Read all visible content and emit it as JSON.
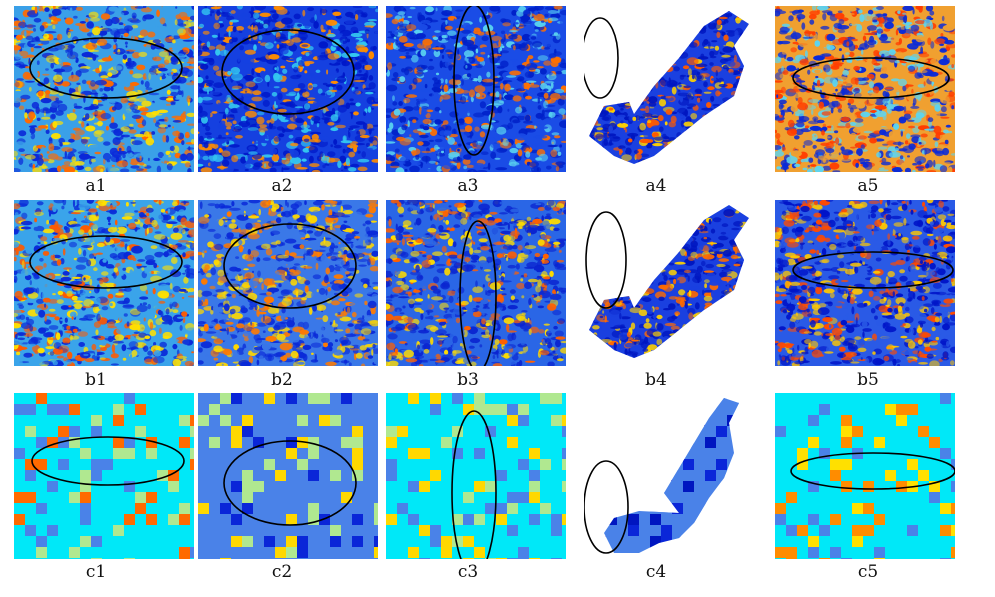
{
  "figure": {
    "rows": [
      {
        "id": "a",
        "panels": [
          {
            "label": "a1",
            "colors": {
              "base": "#3aa0e8",
              "hot": "#ff6a00",
              "cold": "#0a28d8",
              "mid": "#ffe000"
            }
          },
          {
            "label": "a2",
            "colors": {
              "base": "#1540e0",
              "hot": "#ff8c00",
              "cold": "#0018c8",
              "mid": "#34c8f0"
            }
          },
          {
            "label": "a3",
            "colors": {
              "base": "#1a4ce6",
              "hot": "#ff7000",
              "cold": "#0020c8",
              "mid": "#58d0f0"
            }
          },
          {
            "label": "a4",
            "colors": {
              "base": "#1a40e0",
              "hot": "#ff5a00",
              "cold": "#0016c0",
              "mid": "#ffd200"
            }
          },
          {
            "label": "a5",
            "colors": {
              "base": "#f0a030",
              "hot": "#ff3c00",
              "cold": "#0a2ad8",
              "mid": "#5cd4f0"
            }
          }
        ]
      },
      {
        "id": "b",
        "panels": [
          {
            "label": "b1",
            "colors": {
              "base": "#3aa4ea",
              "hot": "#ff5a00",
              "cold": "#0a2ad8",
              "mid": "#ffe000"
            }
          },
          {
            "label": "b2",
            "colors": {
              "base": "#3a78e8",
              "hot": "#ff7a00",
              "cold": "#0a2ad8",
              "mid": "#ffd800"
            }
          },
          {
            "label": "b3",
            "colors": {
              "base": "#2a66e6",
              "hot": "#ff6000",
              "cold": "#0a24d0",
              "mid": "#ffdc00"
            }
          },
          {
            "label": "b4",
            "colors": {
              "base": "#1a40e0",
              "hot": "#ff6a00",
              "cold": "#0016c0",
              "mid": "#ffd200"
            }
          },
          {
            "label": "b5",
            "colors": {
              "base": "#2a5ae6",
              "hot": "#ff4a00",
              "cold": "#0014c8",
              "mid": "#ffc800"
            }
          }
        ]
      },
      {
        "id": "c",
        "panels": [
          {
            "label": "c1",
            "colors": {
              "base": "#00e8f8",
              "hot": "#ff6a00",
              "cold": "#4a82e8",
              "mid": "#b0e890"
            }
          },
          {
            "label": "c2",
            "colors": {
              "base": "#4a82e8",
              "hot": "#ffd800",
              "cold": "#0a26d8",
              "mid": "#b0e890"
            }
          },
          {
            "label": "c3",
            "colors": {
              "base": "#00e8f8",
              "hot": "#ffd800",
              "cold": "#4a82e8",
              "mid": "#b0e890"
            }
          },
          {
            "label": "c4",
            "colors": {
              "base": "#4a82e8",
              "hot": "#0a26d8",
              "cold": "#0016c0",
              "mid": "#4a82e8"
            }
          },
          {
            "label": "c5",
            "colors": {
              "base": "#00e8f8",
              "hot": "#ff8c00",
              "cold": "#4a82e8",
              "mid": "#ffe000"
            }
          }
        ]
      }
    ]
  }
}
